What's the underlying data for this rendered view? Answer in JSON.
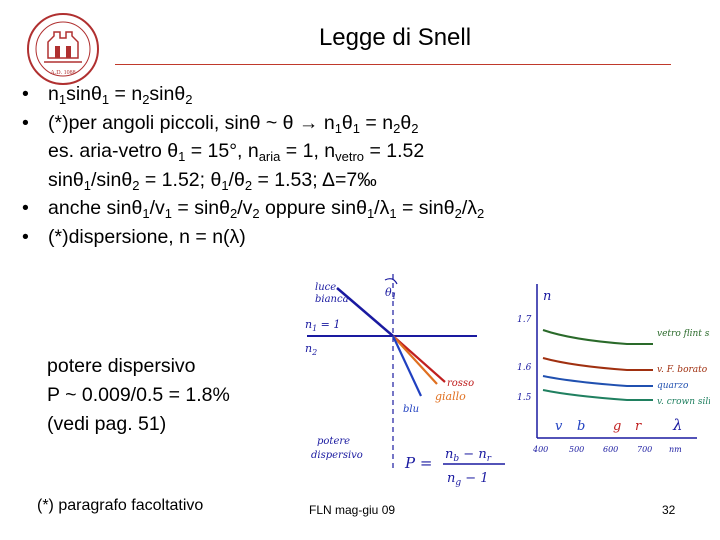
{
  "title": "Legge di Snell",
  "bullets": {
    "b1": {
      "n1": "n",
      "n1sub": "1",
      "mid": "sinθ",
      "mid_sub": "1",
      "eq": " = n",
      "eq_sub": "2",
      "end": "sinθ",
      "end_sub": "2"
    },
    "b2": {
      "a": "(*)per angoli piccoli, sinθ ~ θ  →  n",
      "s1": "1",
      "b": "θ",
      "s2": "1",
      "c": " = n",
      "s3": "2",
      "d": "θ",
      "s4": "2"
    },
    "b2_ex1": {
      "a": "es. aria-vetro θ",
      "s1": "1",
      "b": " = 15°, n",
      "s2": "aria",
      "c": " = 1,  n",
      "s3": "vetro",
      "d": " = 1.52"
    },
    "b2_ex2": {
      "a": "sinθ",
      "s1": "1",
      "b": "/sinθ",
      "s2": "2",
      "c": " = 1.52;   θ",
      "s3": "1",
      "d": "/θ",
      "s4": "2",
      "e": " = 1.53;    Δ=7‰"
    },
    "b3": {
      "a": "anche sinθ",
      "s1": "1",
      "b": "/v",
      "s2": "1",
      "c": " = sinθ",
      "s3": "2",
      "d": "/v",
      "s4": "2",
      "e": "  oppure  sinθ",
      "s5": "1",
      "f": "/λ",
      "s6": "1",
      "g": " = sinθ",
      "s7": "2",
      "h": "/λ",
      "s8": "2"
    },
    "b4": "(*)dispersione, n = n(λ)",
    "bullet_char": "•"
  },
  "dispersive": {
    "line1": "potere dispersivo",
    "line2": "P ~ 0.009/0.5 = 1.8%",
    "line3": "(vedi pag. 51)"
  },
  "figure": {
    "luce_bianca_1": "luce",
    "luce_bianca_2": "bianca",
    "theta1": "θ",
    "theta1_sub": "1",
    "n1_label": "n",
    "n1_sub": "1",
    "n1_eq": " = 1",
    "n2_label": "n",
    "n2_sub": "2",
    "rosso": "rosso",
    "giallo": "giallo",
    "blu": "blu",
    "potere_1": "potere",
    "potere_2": "dispersivo",
    "P_eq": "P =",
    "frac_top_a": "n",
    "frac_top_a_sub": "b",
    "frac_top_op": " − ",
    "frac_top_b": "n",
    "frac_top_b_sub": "r",
    "frac_bot_a": "n",
    "frac_bot_a_sub": "g",
    "frac_bot_op": " − 1",
    "axis_n": "n",
    "y_ticks": [
      "1.7",
      "1.6",
      "1.5"
    ],
    "x_ticks": [
      "400",
      "500",
      "600",
      "700",
      "nm"
    ],
    "lambda": "λ",
    "color_letters": [
      "v",
      "b",
      "g",
      "r"
    ],
    "legend": [
      "vetro flint silicato",
      "v. F. borato",
      "quarzo",
      "v. crown silicato"
    ]
  },
  "footnote": "(*) paragrafo facoltativo",
  "footer_center": "FLN mag-giu 09",
  "page_number": "32"
}
